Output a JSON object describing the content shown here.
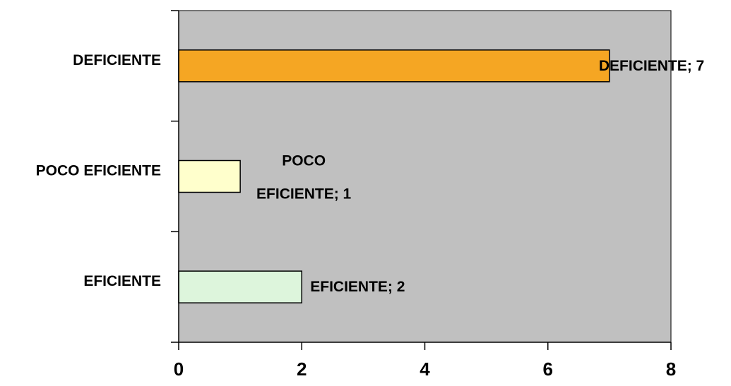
{
  "chart_data": {
    "type": "bar",
    "orientation": "horizontal",
    "categories": [
      "DEFICIENTE",
      "POCO EFICIENTE",
      "EFICIENTE"
    ],
    "values": [
      7,
      1,
      2
    ],
    "data_labels": [
      "DEFICIENTE; 7",
      "POCO EFICIENTE; 1",
      "EFICIENTE; 2"
    ],
    "xlim": [
      0,
      8
    ],
    "x_ticks": [
      0,
      2,
      4,
      6,
      8
    ],
    "grid": false,
    "legend": "none",
    "plot_background": "#c0c0c0",
    "bar_colors": [
      "#f5a623",
      "#ffffcc",
      "#ddf5dc"
    ],
    "bar_outline": "#000000"
  }
}
